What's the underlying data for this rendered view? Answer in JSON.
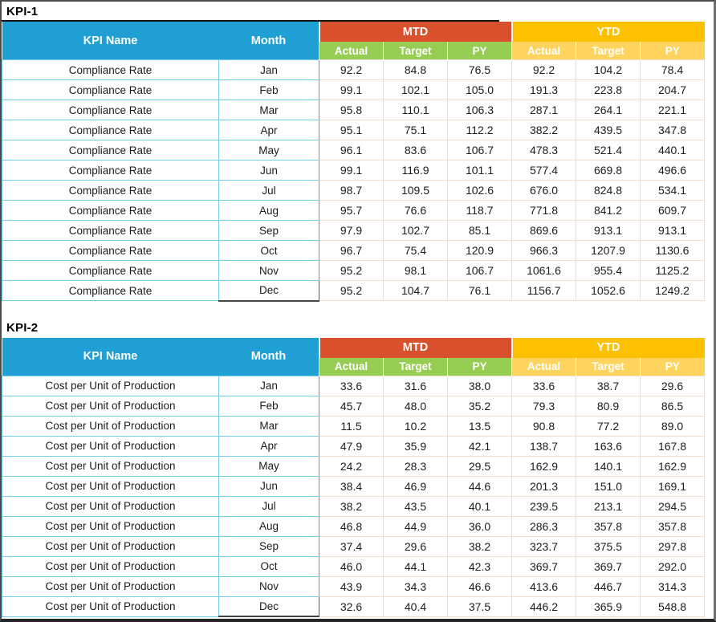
{
  "colors": {
    "header_blue": "#1F9FD4",
    "mtd_red": "#D9512C",
    "ytd_gold": "#FDC101",
    "sub_green": "#97CD52",
    "sub_gold": "#FFD45E",
    "grid_cyan": "#74CCE6",
    "grid_warm": "#F2E0CE",
    "title_color": "#000000",
    "frame_border": "#4B4B4B"
  },
  "labels": {
    "kpi_name": "KPI Name",
    "month": "Month",
    "mtd": "MTD",
    "ytd": "YTD",
    "actual": "Actual",
    "target": "Target",
    "py": "PY"
  },
  "row_columns": [
    "month",
    "mtd_actual",
    "mtd_target",
    "mtd_py",
    "ytd_actual",
    "ytd_target",
    "ytd_py"
  ],
  "tables": [
    {
      "title": "KPI-1",
      "kpi_name": "Compliance Rate",
      "rows": [
        [
          "Jan",
          "92.2",
          "84.8",
          "76.5",
          "92.2",
          "104.2",
          "78.4"
        ],
        [
          "Feb",
          "99.1",
          "102.1",
          "105.0",
          "191.3",
          "223.8",
          "204.7"
        ],
        [
          "Mar",
          "95.8",
          "110.1",
          "106.3",
          "287.1",
          "264.1",
          "221.1"
        ],
        [
          "Apr",
          "95.1",
          "75.1",
          "112.2",
          "382.2",
          "439.5",
          "347.8"
        ],
        [
          "May",
          "96.1",
          "83.6",
          "106.7",
          "478.3",
          "521.4",
          "440.1"
        ],
        [
          "Jun",
          "99.1",
          "116.9",
          "101.1",
          "577.4",
          "669.8",
          "496.6"
        ],
        [
          "Jul",
          "98.7",
          "109.5",
          "102.6",
          "676.0",
          "824.8",
          "534.1"
        ],
        [
          "Aug",
          "95.7",
          "76.6",
          "118.7",
          "771.8",
          "841.2",
          "609.7"
        ],
        [
          "Sep",
          "97.9",
          "102.7",
          "85.1",
          "869.6",
          "913.1",
          "913.1"
        ],
        [
          "Oct",
          "96.7",
          "75.4",
          "120.9",
          "966.3",
          "1207.9",
          "1130.6"
        ],
        [
          "Nov",
          "95.2",
          "98.1",
          "106.7",
          "1061.6",
          "955.4",
          "1125.2"
        ],
        [
          "Dec",
          "95.2",
          "104.7",
          "76.1",
          "1156.7",
          "1052.6",
          "1249.2"
        ]
      ]
    },
    {
      "title": "KPI-2",
      "kpi_name": "Cost per Unit of Production",
      "rows": [
        [
          "Jan",
          "33.6",
          "31.6",
          "38.0",
          "33.6",
          "38.7",
          "29.6"
        ],
        [
          "Feb",
          "45.7",
          "48.0",
          "35.2",
          "79.3",
          "80.9",
          "86.5"
        ],
        [
          "Mar",
          "11.5",
          "10.2",
          "13.5",
          "90.8",
          "77.2",
          "89.0"
        ],
        [
          "Apr",
          "47.9",
          "35.9",
          "42.1",
          "138.7",
          "163.6",
          "167.8"
        ],
        [
          "May",
          "24.2",
          "28.3",
          "29.5",
          "162.9",
          "140.1",
          "162.9"
        ],
        [
          "Jun",
          "38.4",
          "46.9",
          "44.6",
          "201.3",
          "151.0",
          "169.1"
        ],
        [
          "Jul",
          "38.2",
          "43.5",
          "40.1",
          "239.5",
          "213.1",
          "294.5"
        ],
        [
          "Aug",
          "46.8",
          "44.9",
          "36.0",
          "286.3",
          "357.8",
          "357.8"
        ],
        [
          "Sep",
          "37.4",
          "29.6",
          "38.2",
          "323.7",
          "375.5",
          "297.8"
        ],
        [
          "Oct",
          "46.0",
          "44.1",
          "42.3",
          "369.7",
          "369.7",
          "292.0"
        ],
        [
          "Nov",
          "43.9",
          "34.3",
          "46.6",
          "413.6",
          "446.7",
          "314.3"
        ],
        [
          "Dec",
          "32.6",
          "40.4",
          "37.5",
          "446.2",
          "365.9",
          "548.8"
        ]
      ]
    }
  ]
}
